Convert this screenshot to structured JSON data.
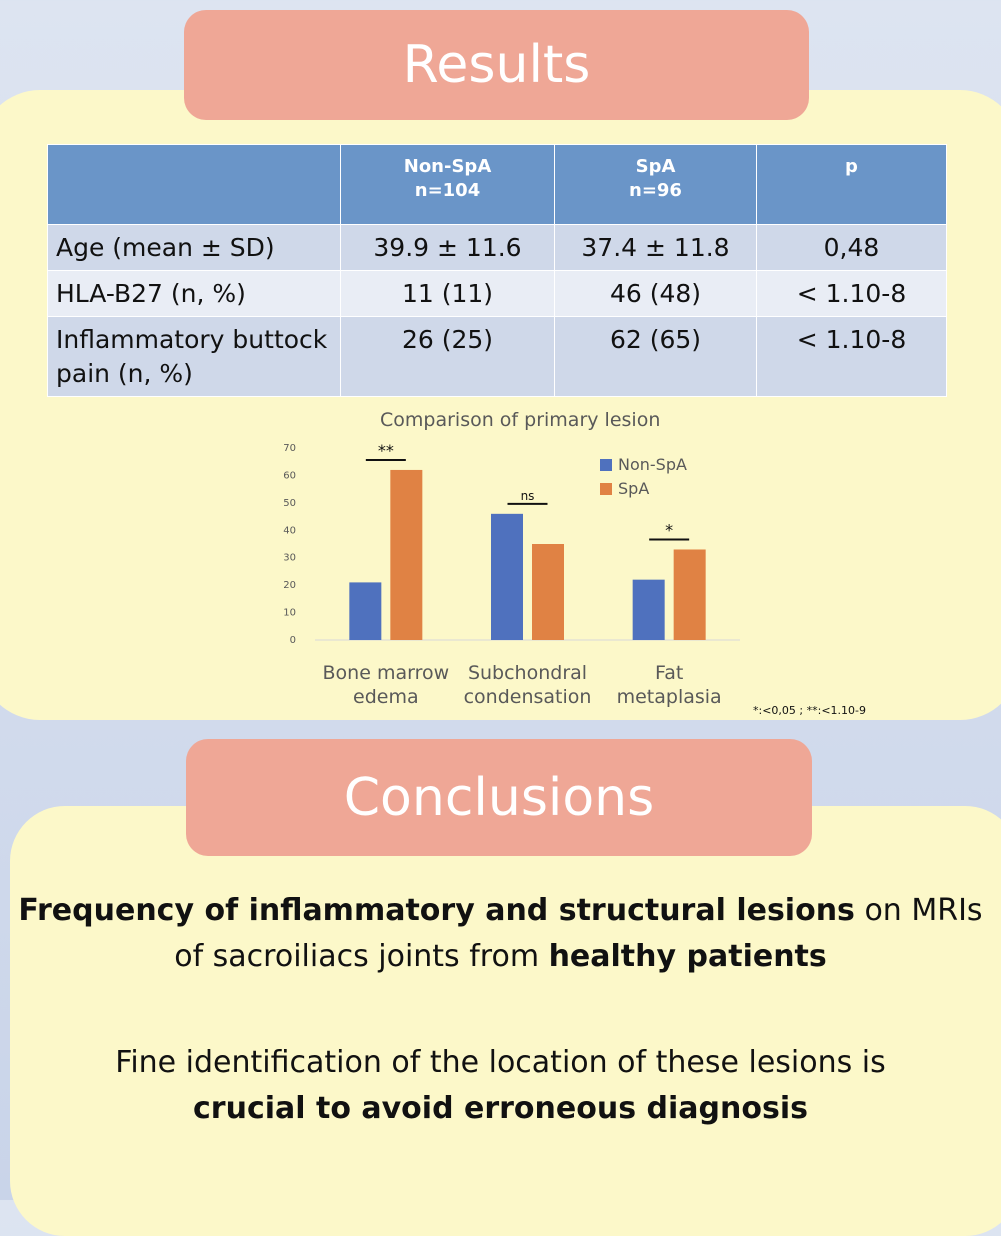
{
  "results_title": "Results",
  "conclusions_title": "Conclusions",
  "table": {
    "headers": [
      {
        "line1": "",
        "line2": ""
      },
      {
        "line1": "Non-SpA",
        "line2": "n=104"
      },
      {
        "line1": "SpA",
        "line2": "n=96"
      },
      {
        "line1": "p",
        "line2": ""
      }
    ],
    "rows": [
      {
        "label": "Age (mean ± SD)",
        "non_spa": "39.9 ± 11.6",
        "spa": "37.4 ± 11.8",
        "p": "0,48"
      },
      {
        "label": "HLA-B27 (n, %)",
        "non_spa": "11 (11)",
        "spa": "46 (48)",
        "p": "< 1.10-8"
      },
      {
        "label": "Inflammatory buttock pain (n, %)",
        "non_spa": "26 (25)",
        "spa": "62 (65)",
        "p": "< 1.10-8"
      }
    ]
  },
  "chart_data": {
    "type": "bar",
    "title": "Comparison of primary lesion",
    "categories": [
      [
        "Bone marrow",
        "edema"
      ],
      [
        "Subchondral",
        "condensation"
      ],
      [
        "Fat",
        "metaplasia"
      ]
    ],
    "series": [
      {
        "name": "Non-SpA",
        "values": [
          21,
          46,
          22
        ],
        "color": "#4f71be"
      },
      {
        "name": "SpA",
        "values": [
          62,
          35,
          33
        ],
        "color": "#e08244"
      }
    ],
    "significance": [
      "**",
      "ns",
      "*"
    ],
    "ylim": [
      0,
      70
    ],
    "yticks": [
      0,
      10,
      20,
      30,
      40,
      50,
      60,
      70
    ],
    "legend_position": "top-right",
    "footnote": "*:<0,05 ; **:<1.10-9"
  },
  "conclusions": {
    "p1": {
      "bold1": "Frequency of inflammatory and structural lesions",
      "text1": " on MRIs of sacroiliacs joints from ",
      "bold2": "healthy patients"
    },
    "p2": {
      "text1": "Fine identification of the location of these lesions is ",
      "bold1": "crucial to avoid erroneous diagnosis"
    }
  }
}
